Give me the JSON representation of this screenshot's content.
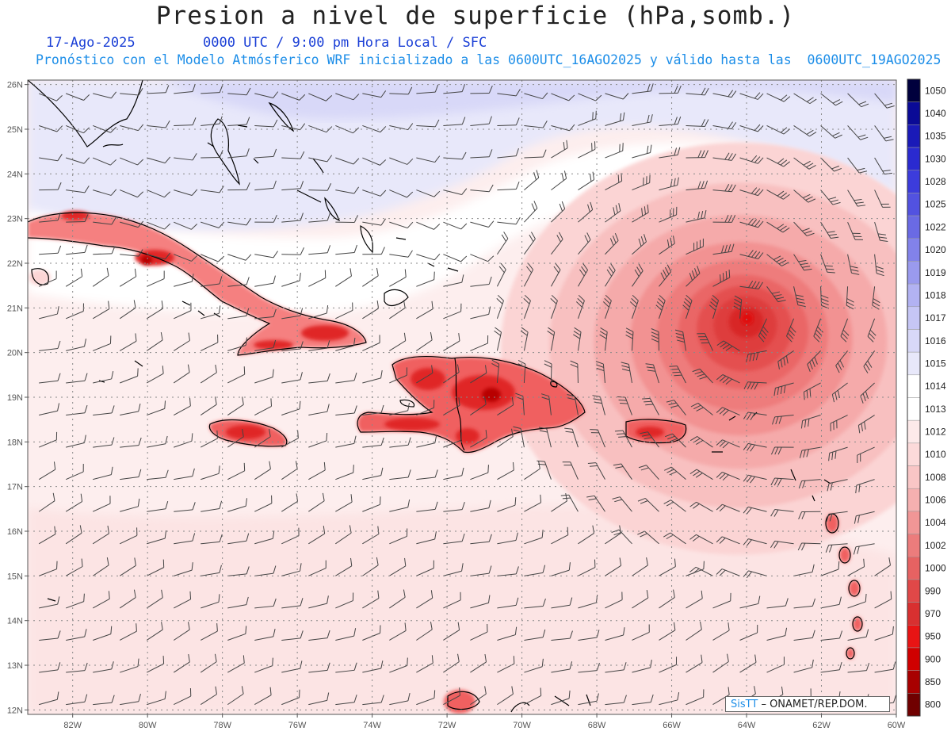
{
  "header": {
    "title": "Presion a nivel de superficie (hPa,somb.)",
    "date": "17-Ago-2025",
    "time": "0000 UTC / 9:00 pm Hora Local / SFC",
    "forecast_line": "Pronóstico con el Modelo Atmósferico WRF inicializado a las 0600UTC_16AGO2025 y válido hasta las  0600UTC_19AGO2025"
  },
  "map": {
    "lat_labels": [
      "26N",
      "25N",
      "24N",
      "23N",
      "22N",
      "21N",
      "20N",
      "19N",
      "18N",
      "17N",
      "16N",
      "15N",
      "14N",
      "13N",
      "12N"
    ],
    "lon_labels": [
      "82W",
      "80W",
      "78W",
      "76W",
      "74W",
      "72W",
      "70W",
      "68W",
      "66W",
      "64W",
      "62W",
      "60W"
    ],
    "lon_range": [
      -83.2,
      -60.0
    ],
    "lat_range": [
      11.9,
      26.1
    ],
    "storm_center": {
      "lon": -64.0,
      "lat": 20.8
    }
  },
  "colorbar": {
    "levels": [
      {
        "label": "1050",
        "color": "#00003d"
      },
      {
        "label": "1040",
        "color": "#0a0a96"
      },
      {
        "label": "1035",
        "color": "#1a1ab8"
      },
      {
        "label": "1030",
        "color": "#2a2ad0"
      },
      {
        "label": "1028",
        "color": "#3c3cdc"
      },
      {
        "label": "1025",
        "color": "#5252e0"
      },
      {
        "label": "1022",
        "color": "#6a6ae4"
      },
      {
        "label": "1020",
        "color": "#8282ea"
      },
      {
        "label": "1019",
        "color": "#9a9aee"
      },
      {
        "label": "1018",
        "color": "#b2b2f2"
      },
      {
        "label": "1017",
        "color": "#c6c6f5"
      },
      {
        "label": "1016",
        "color": "#d8d8f8"
      },
      {
        "label": "1015",
        "color": "#e8e8fa"
      },
      {
        "label": "1014",
        "color": "#ffffff"
      },
      {
        "label": "1013",
        "color": "#ffffff"
      },
      {
        "label": "1012",
        "color": "#fdeaea"
      },
      {
        "label": "1010",
        "color": "#fcdada"
      },
      {
        "label": "1008",
        "color": "#f9c6c6"
      },
      {
        "label": "1006",
        "color": "#f5b0b0"
      },
      {
        "label": "1004",
        "color": "#f19696"
      },
      {
        "label": "1002",
        "color": "#ec7c7c"
      },
      {
        "label": "1000",
        "color": "#e66262"
      },
      {
        "label": "990",
        "color": "#e04848"
      },
      {
        "label": "970",
        "color": "#d83030"
      },
      {
        "label": "950",
        "color": "#e81414"
      },
      {
        "label": "900",
        "color": "#d00000"
      },
      {
        "label": "850",
        "color": "#a80000"
      },
      {
        "label": "800",
        "color": "#700000"
      }
    ]
  },
  "credit": {
    "brand": "SisTT",
    "org": "– ONAMET/REP.DOM."
  }
}
